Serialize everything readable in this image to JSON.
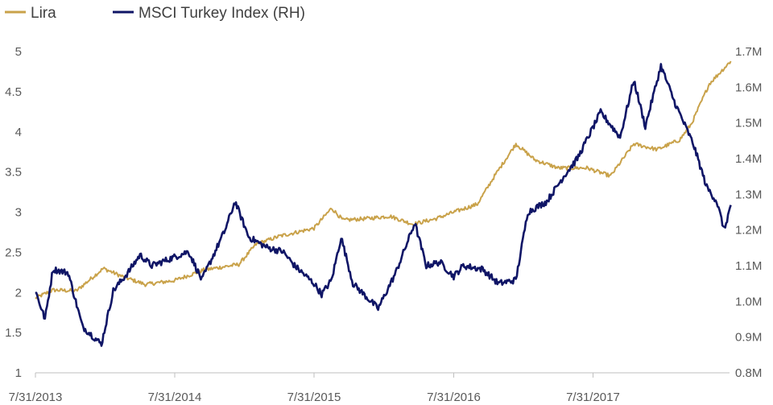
{
  "chart_data": {
    "type": "line",
    "title": "",
    "xlabel": "",
    "ylabel": "",
    "y2label": "",
    "legend_position": "top-left",
    "grid": false,
    "x_ticks": [
      "7/31/2013",
      "7/31/2014",
      "7/31/2015",
      "7/31/2016",
      "7/31/2017"
    ],
    "ylim": [
      1,
      5
    ],
    "y_ticks": [
      "1",
      "1.5",
      "2",
      "2.5",
      "3",
      "3.5",
      "4",
      "4.5",
      "5"
    ],
    "y2lim": [
      800000,
      1700000
    ],
    "y2_ticks": [
      "0.8M",
      "0.9M",
      "1.0M",
      "1.1M",
      "1.2M",
      "1.3M",
      "1.4M",
      "1.5M",
      "1.6M",
      "1.7M"
    ],
    "series": [
      {
        "name": "Lira",
        "axis": "left",
        "color": "#C9A24A",
        "points": [
          [
            "2013-07-31",
            1.93
          ],
          [
            "2013-09-15",
            2.03
          ],
          [
            "2013-11-15",
            2.02
          ],
          [
            "2014-01-25",
            2.3
          ],
          [
            "2014-03-15",
            2.2
          ],
          [
            "2014-05-15",
            2.1
          ],
          [
            "2014-07-31",
            2.15
          ],
          [
            "2014-10-15",
            2.28
          ],
          [
            "2015-01-15",
            2.35
          ],
          [
            "2015-03-01",
            2.6
          ],
          [
            "2015-05-01",
            2.7
          ],
          [
            "2015-07-31",
            2.8
          ],
          [
            "2015-09-15",
            3.05
          ],
          [
            "2015-10-15",
            2.9
          ],
          [
            "2015-12-15",
            2.92
          ],
          [
            "2016-02-15",
            2.95
          ],
          [
            "2016-04-15",
            2.85
          ],
          [
            "2016-06-15",
            2.92
          ],
          [
            "2016-07-31",
            3.0
          ],
          [
            "2016-10-01",
            3.1
          ],
          [
            "2016-11-15",
            3.45
          ],
          [
            "2017-01-10",
            3.85
          ],
          [
            "2017-03-01",
            3.65
          ],
          [
            "2017-05-01",
            3.55
          ],
          [
            "2017-07-15",
            3.55
          ],
          [
            "2017-09-15",
            3.45
          ],
          [
            "2017-11-15",
            3.85
          ],
          [
            "2018-01-15",
            3.78
          ],
          [
            "2018-03-15",
            3.9
          ],
          [
            "2018-04-15",
            4.1
          ],
          [
            "2018-06-01",
            4.6
          ],
          [
            "2018-07-27",
            4.88
          ]
        ]
      },
      {
        "name": "MSCI Turkey Index (RH)",
        "axis": "right",
        "color": "#0F1566",
        "points": [
          [
            "2013-07-31",
            1030000
          ],
          [
            "2013-08-25",
            950000
          ],
          [
            "2013-09-15",
            1090000
          ],
          [
            "2013-10-25",
            1080000
          ],
          [
            "2013-12-01",
            930000
          ],
          [
            "2014-01-20",
            880000
          ],
          [
            "2014-02-20",
            1030000
          ],
          [
            "2014-03-30",
            1080000
          ],
          [
            "2014-05-01",
            1130000
          ],
          [
            "2014-06-01",
            1100000
          ],
          [
            "2014-07-20",
            1120000
          ],
          [
            "2014-09-05",
            1140000
          ],
          [
            "2014-10-10",
            1060000
          ],
          [
            "2014-12-10",
            1200000
          ],
          [
            "2015-01-05",
            1280000
          ],
          [
            "2015-02-10",
            1180000
          ],
          [
            "2015-04-01",
            1150000
          ],
          [
            "2015-05-10",
            1140000
          ],
          [
            "2015-06-10",
            1100000
          ],
          [
            "2015-07-31",
            1050000
          ],
          [
            "2015-08-20",
            1020000
          ],
          [
            "2015-09-15",
            1060000
          ],
          [
            "2015-10-10",
            1180000
          ],
          [
            "2015-11-10",
            1050000
          ],
          [
            "2016-01-15",
            980000
          ],
          [
            "2016-03-01",
            1080000
          ],
          [
            "2016-04-20",
            1220000
          ],
          [
            "2016-05-20",
            1100000
          ],
          [
            "2016-06-25",
            1110000
          ],
          [
            "2016-07-31",
            1070000
          ],
          [
            "2016-08-25",
            1100000
          ],
          [
            "2016-10-15",
            1090000
          ],
          [
            "2016-11-25",
            1050000
          ],
          [
            "2017-01-10",
            1060000
          ],
          [
            "2017-02-10",
            1250000
          ],
          [
            "2017-04-01",
            1280000
          ],
          [
            "2017-05-15",
            1350000
          ],
          [
            "2017-06-20",
            1400000
          ],
          [
            "2017-08-20",
            1530000
          ],
          [
            "2017-10-10",
            1460000
          ],
          [
            "2017-11-15",
            1620000
          ],
          [
            "2017-12-15",
            1490000
          ],
          [
            "2018-01-25",
            1660000
          ],
          [
            "2018-03-01",
            1560000
          ],
          [
            "2018-04-20",
            1440000
          ],
          [
            "2018-05-25",
            1320000
          ],
          [
            "2018-06-20",
            1280000
          ],
          [
            "2018-07-10",
            1200000
          ],
          [
            "2018-07-27",
            1270000
          ]
        ]
      }
    ]
  }
}
